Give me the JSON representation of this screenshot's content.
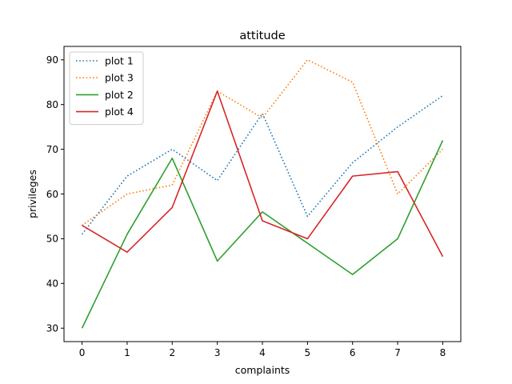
{
  "chart_data": {
    "type": "line",
    "title": "attitude",
    "xlabel": "complaints",
    "ylabel": "privileges",
    "x": [
      0,
      1,
      2,
      3,
      4,
      5,
      6,
      7,
      8
    ],
    "xlim": [
      -0.4,
      8.4
    ],
    "ylim": [
      27,
      93
    ],
    "xticks": [
      0,
      1,
      2,
      3,
      4,
      5,
      6,
      7,
      8
    ],
    "yticks": [
      30,
      40,
      50,
      60,
      70,
      80,
      90
    ],
    "grid": false,
    "legend_position": "top-left",
    "series": [
      {
        "name": "plot 1",
        "color": "#1f77b4",
        "style": "dotted",
        "values": [
          51,
          64,
          70,
          63,
          78,
          55,
          67,
          75,
          82
        ]
      },
      {
        "name": "plot 3",
        "color": "#ff7f0e",
        "style": "dotted",
        "values": [
          53,
          60,
          62,
          83,
          77,
          90,
          85,
          60,
          70
        ]
      },
      {
        "name": "plot 2",
        "color": "#2ca02c",
        "style": "solid",
        "values": [
          30,
          51,
          68,
          45,
          56,
          49,
          42,
          50,
          72
        ]
      },
      {
        "name": "plot 4",
        "color": "#d62728",
        "style": "solid",
        "values": [
          53,
          47,
          57,
          83,
          54,
          50,
          64,
          65,
          46
        ]
      }
    ]
  }
}
